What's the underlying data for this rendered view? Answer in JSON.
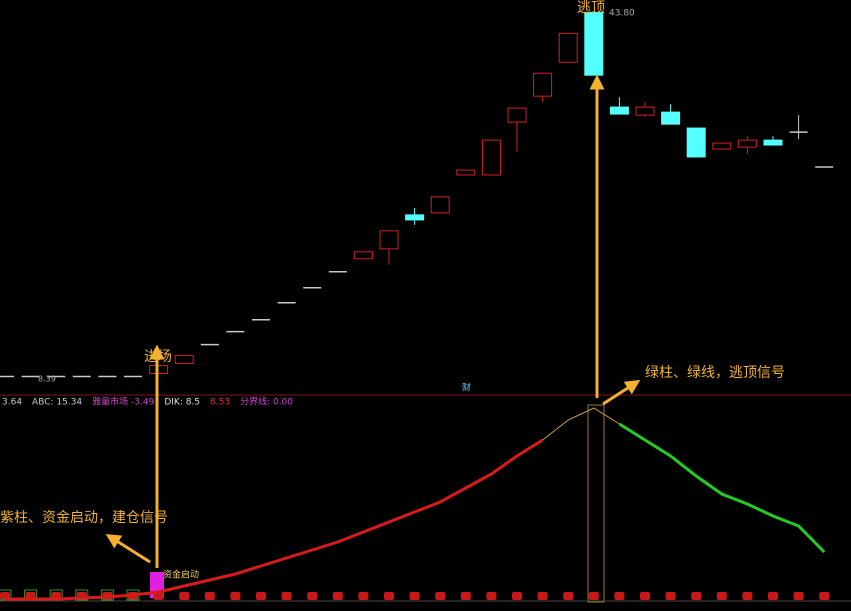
{
  "chart_data": {
    "type": "candlestick",
    "ylim": [
      6.6,
      45
    ],
    "open": [
      8.4,
      8.4,
      8.4,
      8.4,
      8.4,
      8.4,
      8.69,
      9.66,
      11.5,
      12.76,
      13.92,
      15.57,
      17.03,
      18.58,
      19.84,
      20.81,
      24.11,
      24.3,
      27.99,
      27.99,
      33.13,
      35.65,
      38.95,
      43.8,
      34.59,
      33.81,
      34.1,
      32.55,
      30.51,
      30.7,
      31.38,
      32.16,
      28.77
    ],
    "high": [
      8.4,
      8.4,
      8.4,
      8.4,
      8.4,
      8.4,
      9.46,
      10.43,
      11.5,
      12.76,
      13.92,
      15.57,
      17.03,
      18.58,
      20.52,
      22.56,
      24.79,
      25.86,
      28.47,
      31.38,
      34.49,
      37.88,
      41.76,
      43.8,
      35.55,
      35.07,
      34.88,
      32.55,
      31.09,
      31.77,
      31.77,
      33.81,
      28.77
    ],
    "low": [
      8.4,
      8.4,
      8.4,
      8.4,
      8.4,
      8.4,
      8.69,
      9.66,
      11.5,
      12.76,
      13.92,
      15.57,
      17.03,
      18.58,
      19.84,
      19.26,
      23.14,
      24.3,
      27.99,
      27.99,
      30.22,
      35.07,
      38.95,
      37.69,
      33.91,
      33.61,
      32.93,
      29.74,
      30.51,
      30.03,
      30.9,
      31.48,
      28.77
    ],
    "close": [
      8.4,
      8.4,
      8.4,
      8.4,
      8.4,
      8.4,
      9.46,
      10.43,
      11.5,
      12.76,
      13.92,
      15.57,
      17.03,
      18.58,
      20.52,
      22.56,
      23.62,
      25.86,
      28.47,
      31.38,
      34.49,
      37.88,
      41.76,
      37.69,
      33.91,
      34.59,
      32.93,
      29.74,
      31.09,
      31.38,
      30.9,
      32.16,
      28.77
    ],
    "up_color": "#d42020",
    "down_color": "#54ffff",
    "flat_color": "#c8c8c8",
    "high_label": "43.80",
    "base_label": "8.39",
    "annotations": {
      "top": "逃顶",
      "entry": "进场",
      "sell_signal": "绿柱、绿线，逃顶信号",
      "buy_signal": "紫柱、资金启动，建仓信号",
      "fund_start": "资金启动",
      "marker": "财"
    },
    "indicator": {
      "ylim": [
        0,
        100
      ],
      "values": [
        0.5,
        0.5,
        0.5,
        1,
        1.5,
        2.5,
        4,
        7,
        10,
        13,
        17,
        21,
        25,
        29,
        34,
        39,
        44,
        49,
        56,
        63,
        72,
        80,
        90,
        96,
        88,
        80,
        72,
        62,
        53,
        48,
        42,
        37,
        24
      ],
      "rise_color": "#d91a1a",
      "peak_color": "#c8a040",
      "fall_color": "#22cc22",
      "legend": [
        {
          "label": "3.64",
          "color": "#c8c8c8"
        },
        {
          "label": "ABC: 15.34",
          "color": "#c8c8c8"
        },
        {
          "label": "雅童市场 -3.49",
          "color": "#d040d0"
        },
        {
          "label": "DIK: 8.5",
          "color": "#e0e0e0"
        },
        {
          "label": "8.53",
          "color": "#e03030"
        },
        {
          "label": "分界线: 0.00",
          "color": "#d040d0"
        }
      ]
    }
  }
}
